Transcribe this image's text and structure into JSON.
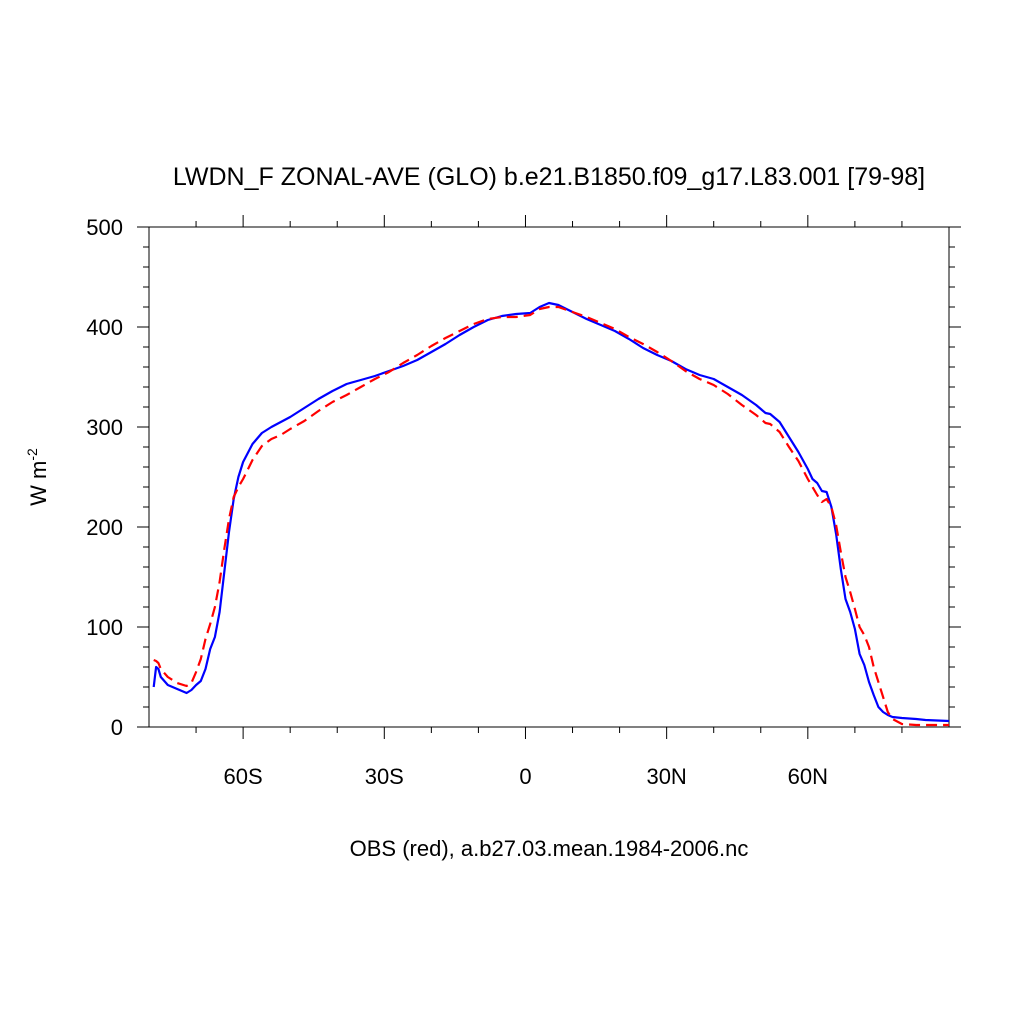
{
  "chart_data": {
    "type": "line",
    "title": "LWDN_F ZONAL-AVE (GLO) b.e21.B1850.f09_g17.L83.001 [79-98]",
    "xlabel": "OBS (red), a.b27.03.mean.1984-2006.nc",
    "ylabel": "W m",
    "ylabel_sup": "-2",
    "xlim": [
      -80,
      90
    ],
    "ylim": [
      0,
      500
    ],
    "x_ticks": [
      {
        "value": -60,
        "label": "60S"
      },
      {
        "value": -30,
        "label": "30S"
      },
      {
        "value": 0,
        "label": "0"
      },
      {
        "value": 30,
        "label": "30N"
      },
      {
        "value": 60,
        "label": "60N"
      }
    ],
    "y_ticks": [
      {
        "value": 0,
        "label": "0"
      },
      {
        "value": 100,
        "label": "100"
      },
      {
        "value": 200,
        "label": "200"
      },
      {
        "value": 300,
        "label": "300"
      },
      {
        "value": 400,
        "label": "400"
      },
      {
        "value": 500,
        "label": "500"
      }
    ],
    "grid": false,
    "series": [
      {
        "color": "#0000ff",
        "style": "solid",
        "points": [
          [
            -79,
            40
          ],
          [
            -78.5,
            60
          ],
          [
            -78,
            58
          ],
          [
            -77.5,
            50
          ],
          [
            -76,
            42
          ],
          [
            -74,
            38
          ],
          [
            -72,
            34
          ],
          [
            -71,
            37
          ],
          [
            -70,
            42
          ],
          [
            -69,
            46
          ],
          [
            -68,
            58
          ],
          [
            -67,
            78
          ],
          [
            -66,
            90
          ],
          [
            -65,
            115
          ],
          [
            -64,
            155
          ],
          [
            -63,
            195
          ],
          [
            -62,
            228
          ],
          [
            -61,
            250
          ],
          [
            -60,
            265
          ],
          [
            -58,
            283
          ],
          [
            -56,
            294
          ],
          [
            -54,
            300
          ],
          [
            -52,
            305
          ],
          [
            -50,
            310
          ],
          [
            -47,
            319
          ],
          [
            -44,
            328
          ],
          [
            -41,
            336
          ],
          [
            -38,
            343
          ],
          [
            -35,
            347
          ],
          [
            -32,
            351
          ],
          [
            -29,
            356
          ],
          [
            -26,
            361
          ],
          [
            -23,
            367
          ],
          [
            -20,
            375
          ],
          [
            -17,
            383
          ],
          [
            -14,
            392
          ],
          [
            -11,
            400
          ],
          [
            -8,
            407
          ],
          [
            -5,
            411
          ],
          [
            -2,
            413
          ],
          [
            1,
            414
          ],
          [
            3,
            420
          ],
          [
            5,
            424
          ],
          [
            7,
            422
          ],
          [
            10,
            415
          ],
          [
            13,
            408
          ],
          [
            16,
            402
          ],
          [
            19,
            396
          ],
          [
            22,
            388
          ],
          [
            25,
            379
          ],
          [
            28,
            372
          ],
          [
            31,
            366
          ],
          [
            34,
            358
          ],
          [
            37,
            352
          ],
          [
            40,
            348
          ],
          [
            43,
            340
          ],
          [
            46,
            332
          ],
          [
            49,
            322
          ],
          [
            51,
            314
          ],
          [
            52,
            313
          ],
          [
            54,
            305
          ],
          [
            56,
            290
          ],
          [
            58,
            275
          ],
          [
            60,
            258
          ],
          [
            61,
            248
          ],
          [
            62,
            244
          ],
          [
            63,
            236
          ],
          [
            64,
            235
          ],
          [
            65,
            220
          ],
          [
            66,
            193
          ],
          [
            67,
            158
          ],
          [
            68,
            128
          ],
          [
            69,
            115
          ],
          [
            70,
            98
          ],
          [
            71,
            73
          ],
          [
            72,
            62
          ],
          [
            73,
            45
          ],
          [
            74,
            32
          ],
          [
            75,
            20
          ],
          [
            76,
            15
          ],
          [
            77,
            12
          ],
          [
            78,
            10
          ],
          [
            80,
            9
          ],
          [
            83,
            8
          ],
          [
            85,
            7
          ],
          [
            90,
            6
          ]
        ]
      },
      {
        "color": "#ff0000",
        "style": "dashed",
        "points": [
          [
            -79,
            67
          ],
          [
            -78.5,
            66
          ],
          [
            -78,
            64
          ],
          [
            -77.5,
            58
          ],
          [
            -76,
            50
          ],
          [
            -74,
            44
          ],
          [
            -72,
            41
          ],
          [
            -71,
            44
          ],
          [
            -70,
            55
          ],
          [
            -69,
            68
          ],
          [
            -68,
            88
          ],
          [
            -67,
            103
          ],
          [
            -66,
            120
          ],
          [
            -65,
            145
          ],
          [
            -64,
            178
          ],
          [
            -63,
            208
          ],
          [
            -62,
            230
          ],
          [
            -61,
            240
          ],
          [
            -60,
            248
          ],
          [
            -58,
            267
          ],
          [
            -56,
            281
          ],
          [
            -54,
            288
          ],
          [
            -52,
            292
          ],
          [
            -50,
            298
          ],
          [
            -47,
            306
          ],
          [
            -44,
            316
          ],
          [
            -41,
            325
          ],
          [
            -38,
            332
          ],
          [
            -35,
            340
          ],
          [
            -32,
            348
          ],
          [
            -29,
            355
          ],
          [
            -26,
            364
          ],
          [
            -23,
            372
          ],
          [
            -20,
            381
          ],
          [
            -17,
            389
          ],
          [
            -14,
            396
          ],
          [
            -11,
            403
          ],
          [
            -8,
            408
          ],
          [
            -5,
            410
          ],
          [
            -2,
            410
          ],
          [
            1,
            412
          ],
          [
            3,
            418
          ],
          [
            5,
            420
          ],
          [
            7,
            420
          ],
          [
            10,
            415
          ],
          [
            13,
            410
          ],
          [
            16,
            404
          ],
          [
            19,
            398
          ],
          [
            22,
            390
          ],
          [
            25,
            383
          ],
          [
            28,
            375
          ],
          [
            31,
            366
          ],
          [
            34,
            356
          ],
          [
            37,
            348
          ],
          [
            40,
            342
          ],
          [
            43,
            333
          ],
          [
            46,
            322
          ],
          [
            49,
            312
          ],
          [
            51,
            304
          ],
          [
            52,
            303
          ],
          [
            54,
            295
          ],
          [
            56,
            280
          ],
          [
            58,
            266
          ],
          [
            60,
            248
          ],
          [
            61,
            240
          ],
          [
            62,
            232
          ],
          [
            63,
            225
          ],
          [
            64,
            228
          ],
          [
            65,
            220
          ],
          [
            66,
            202
          ],
          [
            67,
            175
          ],
          [
            68,
            150
          ],
          [
            69,
            135
          ],
          [
            70,
            118
          ],
          [
            71,
            100
          ],
          [
            72,
            92
          ],
          [
            73,
            80
          ],
          [
            74,
            60
          ],
          [
            75,
            45
          ],
          [
            76,
            30
          ],
          [
            77,
            15
          ],
          [
            78,
            8
          ],
          [
            80,
            3
          ],
          [
            83,
            2
          ],
          [
            85,
            2
          ],
          [
            90,
            2
          ]
        ]
      }
    ]
  }
}
